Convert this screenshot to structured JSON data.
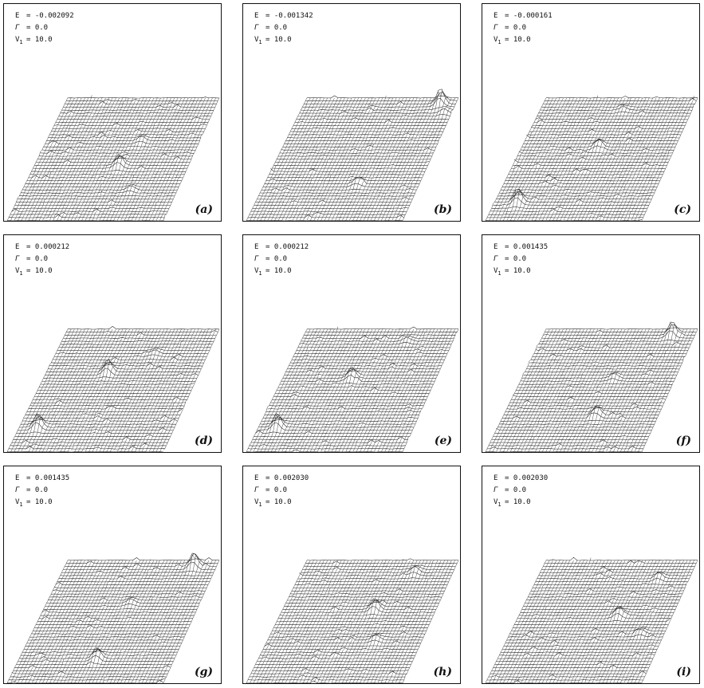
{
  "panels": [
    {
      "label": "(a)",
      "E": "-0.002092",
      "Gamma": "0.0",
      "V1": "10.0"
    },
    {
      "label": "(b)",
      "E": "-0.001342",
      "Gamma": "0.0",
      "V1": "10.0"
    },
    {
      "label": "(c)",
      "E": "-0.000161",
      "Gamma": "0.0",
      "V1": "10.0"
    },
    {
      "label": "(d)",
      "E": "0.000212",
      "Gamma": "0.0",
      "V1": "10.0"
    },
    {
      "label": "(e)",
      "E": "0.000212",
      "Gamma": "0.0",
      "V1": "10.0"
    },
    {
      "label": "(f)",
      "E": "0.001435",
      "Gamma": "0.0",
      "V1": "10.0"
    },
    {
      "label": "(g)",
      "E": "0.001435",
      "Gamma": "0.0",
      "V1": "10.0"
    },
    {
      "label": "(h)",
      "E": "0.002030",
      "Gamma": "0.0",
      "V1": "10.0"
    },
    {
      "label": "(i)",
      "E": "0.002030",
      "Gamma": "0.0",
      "V1": "10.0"
    }
  ],
  "symbols": {
    "E": "E",
    "Gamma": "Γ",
    "V": "V",
    "V_sub": "1",
    "eq": "="
  }
}
